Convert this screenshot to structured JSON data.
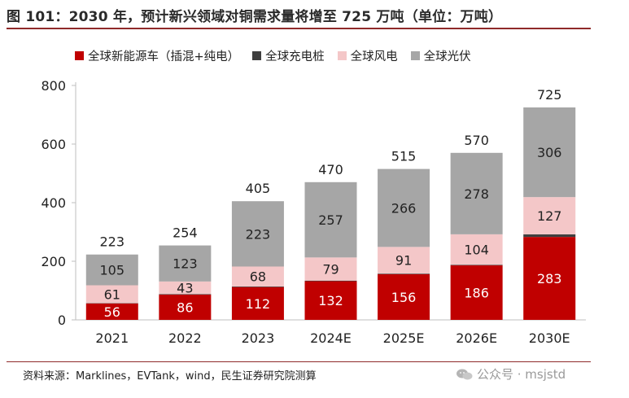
{
  "title": "图 101：2030 年，预计新兴领域对铜需求量将增至 725 万吨（单位：万吨）",
  "source": "资料来源：Marklines，EVTank，wind，民生证券研究院测算",
  "watermark": "公众号 · msjstd",
  "colors": {
    "ev": "#c00000",
    "charging": "#3f3f3f",
    "wind": "#f4c7c8",
    "solar": "#a6a6a6",
    "title_rule": "#8f2a2a"
  },
  "chart_data": {
    "type": "bar",
    "stacked": true,
    "categories": [
      "2021",
      "2022",
      "2023",
      "2024E",
      "2025E",
      "2026E",
      "2030E"
    ],
    "series": [
      {
        "name": "全球新能源车（插混+纯电）",
        "values": [
          56,
          86,
          112,
          132,
          156,
          186,
          283
        ],
        "labels": [
          "56",
          "86",
          "112",
          "132",
          "156",
          "186",
          "283"
        ]
      },
      {
        "name": "全球充电桩",
        "values": [
          1,
          2,
          2,
          2,
          2,
          2,
          9
        ],
        "labels": [
          "",
          "",
          "",
          "",
          "",
          "",
          ""
        ]
      },
      {
        "name": "全球风电",
        "values": [
          61,
          43,
          68,
          79,
          91,
          104,
          127
        ],
        "labels": [
          "61",
          "43",
          "68",
          "79",
          "91",
          "104",
          "127"
        ]
      },
      {
        "name": "全球光伏",
        "values": [
          105,
          123,
          223,
          257,
          266,
          278,
          306
        ],
        "labels": [
          "105",
          "123",
          "223",
          "257",
          "266",
          "278",
          "306"
        ]
      }
    ],
    "totals": [
      "223",
      "254",
      "405",
      "470",
      "515",
      "570",
      "725"
    ],
    "ylim": [
      0,
      800
    ],
    "yticks": [
      "0",
      "200",
      "400",
      "600",
      "800"
    ],
    "grid": false,
    "legend": "top"
  }
}
